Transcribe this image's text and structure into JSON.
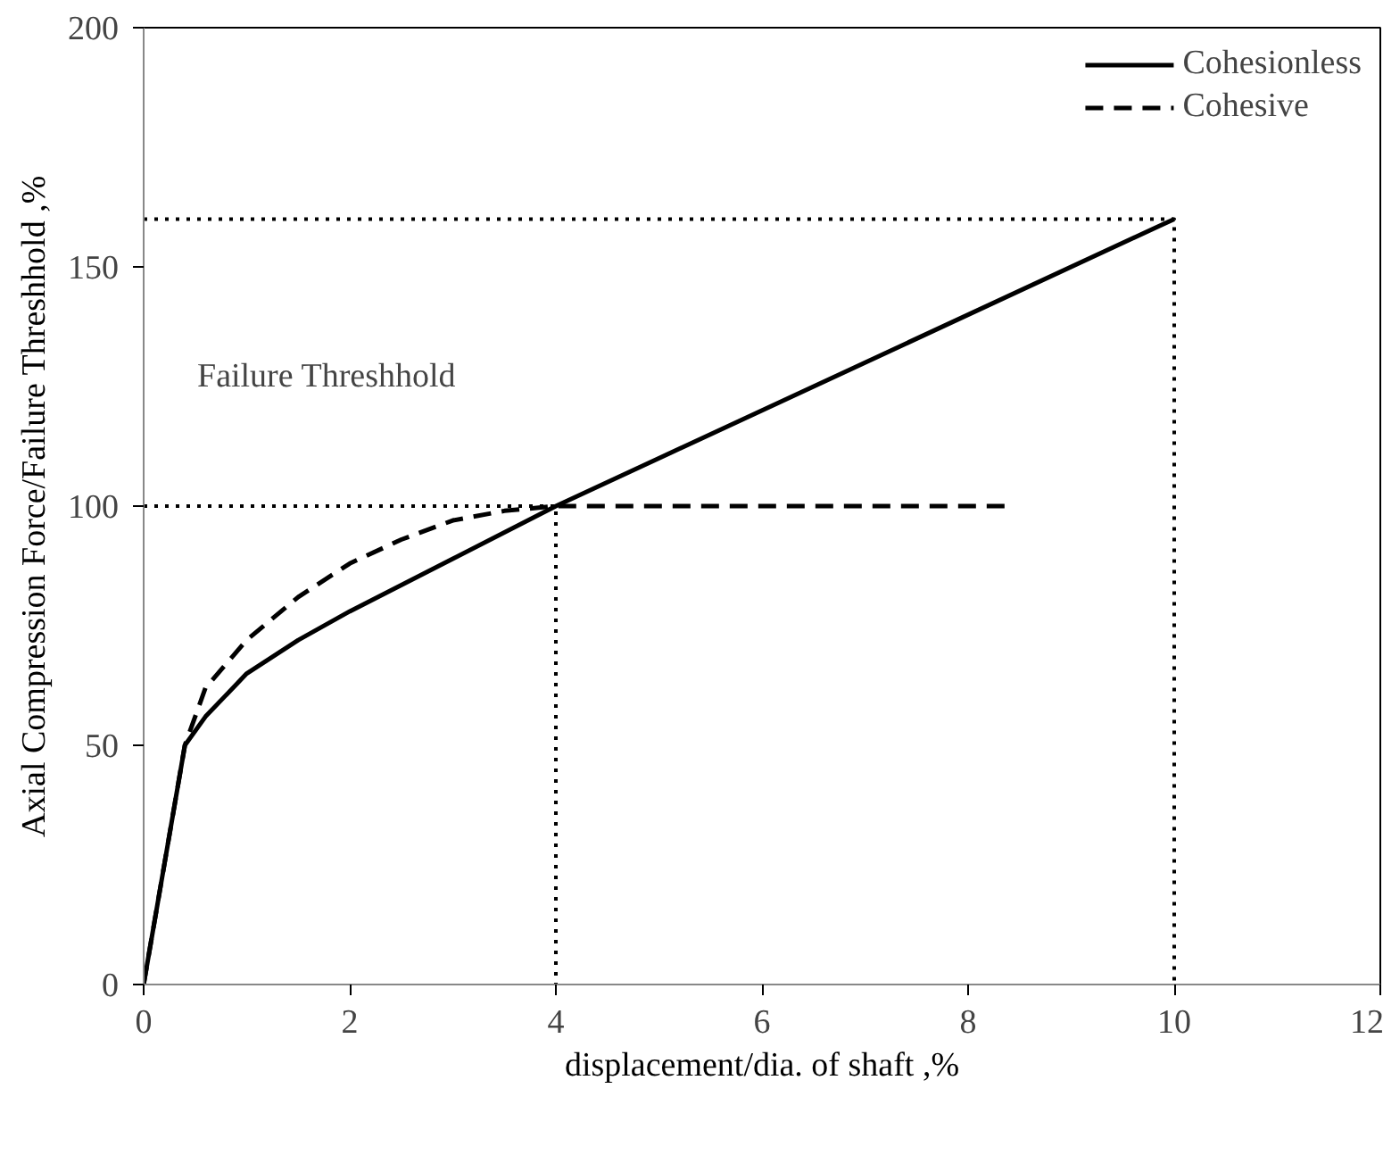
{
  "chart_data": {
    "type": "line",
    "xlabel": "displacement/dia. of shaft ,%",
    "ylabel": "Axial Compression Force/Failure Threshhold ,%",
    "annotations": [
      "Failure Threshhold"
    ],
    "series": [
      {
        "name": "Cohesionless",
        "color": "#000000",
        "line_style": "solid",
        "x": [
          0,
          0.4,
          0.6,
          1,
          1.5,
          2,
          3,
          4,
          10
        ],
        "values": [
          0,
          50,
          56,
          65,
          72,
          78,
          89,
          100,
          160
        ]
      },
      {
        "name": "Cohesive",
        "color": "#000000",
        "line_style": "dashed",
        "x": [
          0,
          0.4,
          0.6,
          1,
          1.5,
          2,
          2.5,
          3,
          3.5,
          4,
          8.4
        ],
        "values": [
          0,
          50,
          62,
          72,
          81,
          88,
          93,
          97,
          99,
          100,
          100
        ]
      },
      {
        "color": "#000000",
        "line_style": "dotted",
        "x": [
          0,
          10,
          10
        ],
        "values": [
          160,
          160,
          0
        ]
      },
      {
        "color": "#000000",
        "line_style": "dotted",
        "x": [
          0,
          4,
          4
        ],
        "values": [
          100,
          100,
          0
        ]
      }
    ],
    "xlim": [
      0,
      12
    ],
    "xticks": [
      0,
      2,
      4,
      6,
      8,
      10,
      12
    ],
    "ylim": [
      0,
      200
    ],
    "yticks": [
      0,
      50,
      100,
      150,
      200
    ],
    "grid": false,
    "legend": "top right",
    "marker": "none"
  }
}
